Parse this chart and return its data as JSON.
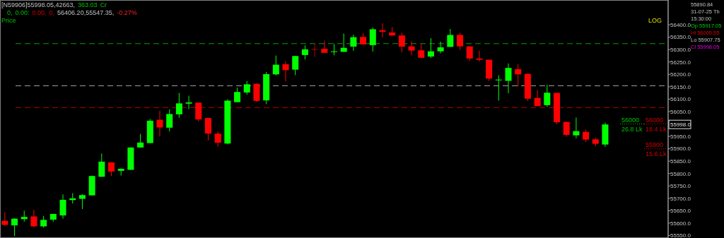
{
  "chart_data": {
    "type": "candlestick",
    "categories": [
      null,
      null,
      null,
      null,
      null,
      null,
      null,
      null,
      null,
      null,
      null,
      null,
      null,
      null,
      null,
      null,
      null,
      null,
      null,
      null,
      null,
      null,
      null,
      null,
      null,
      null,
      null,
      null,
      null,
      null,
      null,
      null,
      null,
      null,
      null,
      null,
      null,
      null,
      null,
      null,
      null,
      null,
      null,
      null,
      null,
      null,
      null,
      null,
      null,
      null,
      null,
      null,
      null,
      null,
      null,
      null,
      null,
      null,
      null,
      null,
      null,
      null,
      null,
      null,
      null,
      null,
      null,
      null,
      null
    ],
    "ohlc": [
      [
        55609,
        55644,
        55588,
        55593
      ],
      [
        55591,
        55620,
        55547.35,
        55618
      ],
      [
        55616,
        55650,
        55606,
        55625
      ],
      [
        55627,
        55654,
        55583,
        55587
      ],
      [
        55587,
        55629,
        55582,
        55613
      ],
      [
        55614,
        55638,
        55606,
        55637
      ],
      [
        55631,
        55716,
        55618,
        55694
      ],
      [
        55693,
        55721,
        55679,
        55700
      ],
      [
        55698,
        55717,
        55657,
        55713
      ],
      [
        55712,
        55792,
        55712,
        55790
      ],
      [
        55787,
        55881,
        55787,
        55848
      ],
      [
        55845,
        55846,
        55790,
        55808
      ],
      [
        55811,
        55821,
        55792,
        55819
      ],
      [
        55815,
        55906,
        55815,
        55905
      ],
      [
        55905,
        55960,
        55905,
        55925
      ],
      [
        55923,
        56020,
        55923,
        56013
      ],
      [
        56017,
        56053,
        55950,
        55986
      ],
      [
        55985,
        56059,
        55970,
        56040
      ],
      [
        56039,
        56125,
        56025,
        56083
      ],
      [
        56082,
        56114,
        56060,
        56087
      ],
      [
        56086,
        56086,
        56010,
        56018
      ],
      [
        56024,
        56025,
        55934,
        55961
      ],
      [
        55961,
        55970,
        55908,
        55924
      ],
      [
        55921,
        56099,
        55918,
        56094
      ],
      [
        56088,
        56146,
        56088,
        56129
      ],
      [
        56127,
        56173,
        56118,
        56160
      ],
      [
        56162,
        56164,
        56089,
        56093
      ],
      [
        56095,
        56210,
        56080,
        56201
      ],
      [
        56200,
        56276,
        56196,
        56239
      ],
      [
        56241,
        56253,
        56172,
        56217
      ],
      [
        56219,
        56275,
        56197,
        56274
      ],
      [
        56278,
        56317,
        56260,
        56301
      ],
      [
        56302,
        56324,
        56270,
        56300
      ],
      [
        56303,
        56336,
        56287,
        56287
      ],
      [
        56290,
        56322,
        56277,
        56293
      ],
      [
        56291,
        56365,
        56291,
        56307
      ],
      [
        56312,
        56360,
        56295,
        56350
      ],
      [
        56351,
        56366,
        56319,
        56321
      ],
      [
        56318,
        56389,
        56292,
        56382
      ],
      [
        56378,
        56406.2,
        56349,
        56372
      ],
      [
        56369,
        56391,
        56355,
        56357
      ],
      [
        56357,
        56368,
        56289,
        56312
      ],
      [
        56313,
        56334,
        56277,
        56296
      ],
      [
        56297,
        56322,
        56267,
        56267
      ],
      [
        56272,
        56346,
        56266,
        56293
      ],
      [
        56293,
        56332,
        56285,
        56309
      ],
      [
        56311,
        56383,
        56311,
        56359
      ],
      [
        56359,
        56368,
        56299,
        56313
      ],
      [
        56313,
        56313,
        56255,
        56264
      ],
      [
        56264,
        56296,
        56252,
        56259
      ],
      [
        56259,
        56259,
        56173,
        56183
      ],
      [
        56176,
        56196,
        56094,
        56179
      ],
      [
        56174,
        56244,
        56124,
        56226
      ],
      [
        56221,
        56241,
        56151,
        56200
      ],
      [
        56202,
        56204,
        56093,
        56102
      ],
      [
        56105,
        56137,
        56072,
        56072
      ],
      [
        56076,
        56158,
        56069,
        56126
      ],
      [
        56125,
        56126,
        55999,
        56007
      ],
      [
        56008,
        56011,
        55948,
        55956
      ],
      [
        55954,
        56026,
        55942,
        55971
      ],
      [
        55968,
        55977,
        55927,
        55937
      ],
      [
        55938,
        55945,
        55910,
        55920
      ],
      [
        55917.05,
        56005.55,
        55907.75,
        55998.05
      ],
      null,
      null,
      null,
      null,
      null,
      null
    ],
    "colors": [
      "#ff0000",
      "#00ff00",
      "#00ff00",
      "#ff0000",
      "#00ff00",
      "#00ff00",
      "#00ff00",
      "#00ff00",
      "#00ff00",
      "#00ff00",
      "#00ff00",
      "#ff0000",
      "#00ff00",
      "#00ff00",
      "#00ff00",
      "#00ff00",
      "#ff0000",
      "#00ff00",
      "#00ff00",
      "#00ff00",
      "#ff0000",
      "#ff0000",
      "#ff0000",
      "#00ff00",
      "#00ff00",
      "#00ff00",
      "#ff0000",
      "#00ff00",
      "#00ff00",
      "#ff0000",
      "#00ff00",
      "#00ff00",
      "#b00000",
      "#ff0000",
      "#00ff00",
      "#00ff00",
      "#00ff00",
      "#ff0000",
      "#00ff00",
      "#ff0000",
      "#ff0000",
      "#ff0000",
      "#ff0000",
      "#ff0000",
      "#00ff00",
      "#00ff00",
      "#00ff00",
      "#ff0000",
      "#ff0000",
      "#ff0000",
      "#ff0000",
      "#00ff00",
      "#00ff00",
      "#ff0000",
      "#ff0000",
      "#ff0000",
      "#00ff00",
      "#ff0000",
      "#ff0000",
      "#00ff00",
      "#ff0000",
      "#ff0000",
      "#00ff00",
      null,
      null,
      null,
      null,
      null,
      null
    ],
    "ylim": [
      55540,
      56500
    ],
    "yticks": [
      {
        "value": 55550,
        "label": "55550.0"
      },
      {
        "value": 55600,
        "label": "55600.0"
      },
      {
        "value": 55650,
        "label": "55650.0"
      },
      {
        "value": 55700,
        "label": "55700.0"
      },
      {
        "value": 55750,
        "label": "55750.0"
      },
      {
        "value": 55800,
        "label": "55800.0"
      },
      {
        "value": 55850,
        "label": "55850.0"
      },
      {
        "value": 55900,
        "label": "55900.0"
      },
      {
        "value": 55950,
        "label": "55950.0"
      },
      {
        "value": 56000,
        "label": null
      },
      {
        "value": 56050,
        "label": "56050.0"
      },
      {
        "value": 56100,
        "label": "56100.0"
      },
      {
        "value": 56150,
        "label": "56150.0"
      },
      {
        "value": 56200,
        "label": "56200.0"
      },
      {
        "value": 56250,
        "label": "56250.0"
      },
      {
        "value": 56300,
        "label": "56300.0"
      },
      {
        "value": 56350,
        "label": "56350.0"
      },
      {
        "value": 56400,
        "label": "56400.0"
      }
    ],
    "tick_labels": "y",
    "grid": false,
    "ref_lines": [
      {
        "axis": "y",
        "value": 56324,
        "color": "#00a000",
        "line_style": "dashed"
      },
      {
        "axis": "y",
        "value": 56154,
        "color": "#a0a0a0",
        "line_style": "dashed"
      },
      {
        "axis": "y",
        "value": 56066,
        "color": "#b00000",
        "line_style": "dashed"
      },
      {
        "axis": "y",
        "value": 56000,
        "label": "56000\n18.4 Lk",
        "color": "#d00000",
        "line_style": "dotted"
      },
      {
        "axis": "y",
        "value": 56000,
        "label": "56000\n26.8 Lk",
        "color": "#00c000",
        "line_style": "dotted"
      },
      {
        "axis": "y",
        "value": 55900,
        "label": "55900\n15.6 Lk",
        "color": "#d00000",
        "line_style": "dotted"
      }
    ],
    "annotations": [
      "[N59906]55998.05,42663,",
      "363.03",
      "Cr",
      "0,",
      "0.00:",
      "0.00,",
      "0,",
      "56406.20,55547.35,",
      "-0.27%",
      "Price",
      "LOG",
      "55890.84",
      "31-07-25 Th",
      "15:30:00",
      "Op 55917.05",
      "Hi 56005.55",
      "Lo 55907.75",
      "Cl 55998.05",
      "55998.0"
    ]
  }
}
